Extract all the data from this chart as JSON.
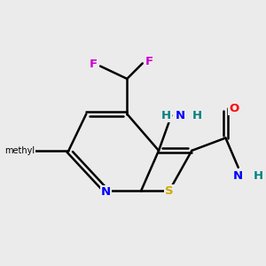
{
  "background_color": "#ebebeb",
  "bond_color": "#000000",
  "atom_colors": {
    "F": "#cc00cc",
    "N": "#0000ff",
    "S": "#ccaa00",
    "O": "#ff0000",
    "C": "#000000",
    "H": "#008080",
    "NH2_amino": "#0000ff",
    "NH2_amide": "#0000ff"
  },
  "figsize": [
    3.0,
    3.0
  ],
  "dpi": 100
}
